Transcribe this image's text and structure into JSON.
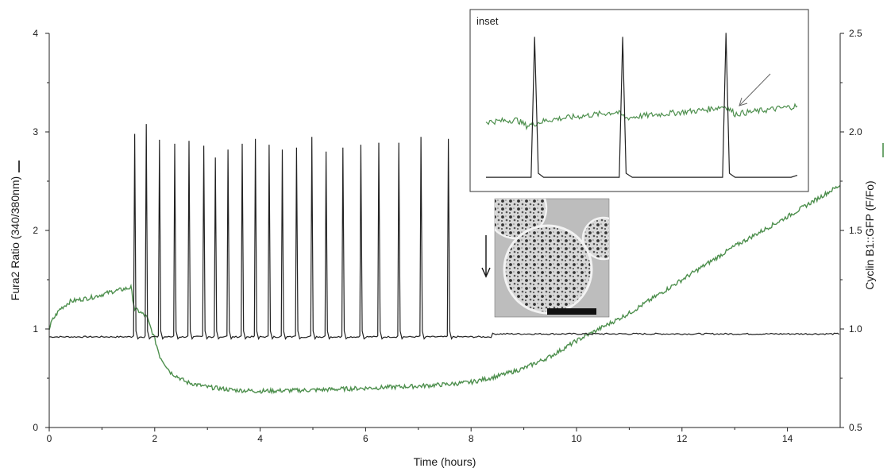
{
  "chart_data": [
    {
      "type": "line",
      "xlabel": "Time (hours)",
      "ylabel": "Fura2 Ratio (340/380nm)",
      "y2label": "Cyclin B1::GFP (F/Fo)",
      "xlim": [
        0,
        15
      ],
      "ylim": [
        0,
        4
      ],
      "y2lim": [
        0.5,
        2.5
      ],
      "x_ticks": [
        "0",
        "2",
        "4",
        "6",
        "8",
        "10",
        "12",
        "14"
      ],
      "y_ticks": [
        "0",
        "1",
        "2",
        "3",
        "4"
      ],
      "y2_ticks": [
        "0.5",
        "1.0",
        "1.5",
        "2.0",
        "2.5"
      ],
      "grid": false,
      "colors": {
        "fura2": "#222222",
        "gfp": "#4d8f4d"
      },
      "series": [
        {
          "axis": "left",
          "baseline": 0.92,
          "baseline_after_8_4h": 0.95,
          "spike_times": [
            1.62,
            1.84,
            2.09,
            2.38,
            2.65,
            2.93,
            3.15,
            3.39,
            3.66,
            3.91,
            4.17,
            4.42,
            4.69,
            4.98,
            5.25,
            5.57,
            5.91,
            6.25,
            6.63,
            7.05,
            7.57
          ],
          "spike_peaks": [
            2.98,
            3.08,
            2.92,
            2.88,
            2.91,
            2.86,
            2.74,
            2.82,
            2.88,
            2.93,
            2.87,
            2.82,
            2.84,
            2.95,
            2.8,
            2.84,
            2.87,
            2.89,
            2.89,
            2.95,
            2.93
          ]
        },
        {
          "axis": "right",
          "x": [
            0,
            0.05,
            0.2,
            0.4,
            0.8,
            1.2,
            1.55,
            1.62,
            1.7,
            1.85,
            2.0,
            2.1,
            2.3,
            2.6,
            3.0,
            3.5,
            4.0,
            5.0,
            6.0,
            7.0,
            7.6,
            8.0,
            8.5,
            9.0,
            9.5,
            10.0,
            10.5,
            11.0,
            12.0,
            13.0,
            14.0,
            14.5,
            15.0
          ],
          "y": [
            1.0,
            1.04,
            1.1,
            1.14,
            1.16,
            1.19,
            1.21,
            1.1,
            1.09,
            1.06,
            0.95,
            0.86,
            0.78,
            0.73,
            0.705,
            0.69,
            0.685,
            0.69,
            0.7,
            0.71,
            0.72,
            0.73,
            0.76,
            0.8,
            0.86,
            0.94,
            1.01,
            1.08,
            1.25,
            1.42,
            1.57,
            1.65,
            1.73
          ]
        }
      ]
    },
    {
      "type": "line",
      "label": "inset",
      "ylim": [
        1.7,
        2.6
      ],
      "colors": {
        "fura2": "#222222",
        "gfp": "#4d8f4d"
      },
      "series": [
        {
          "x": [
            0.0,
            0.1,
            0.145,
            0.156,
            0.168,
            0.185,
            0.4,
            0.428,
            0.439,
            0.45,
            0.47,
            0.7,
            0.76,
            0.771,
            0.782,
            0.8,
            0.98,
            1.0
          ],
          "y": [
            1.76,
            1.76,
            1.76,
            2.47,
            1.78,
            1.76,
            1.76,
            1.76,
            2.47,
            1.78,
            1.76,
            1.76,
            1.76,
            2.49,
            1.78,
            1.76,
            1.76,
            1.77
          ]
        },
        {
          "x": [
            0.0,
            0.1,
            0.13,
            0.2,
            0.42,
            0.45,
            0.5,
            0.7,
            0.77,
            0.8,
            0.9,
            0.95,
            1.0
          ],
          "y": [
            2.04,
            2.05,
            2.02,
            2.05,
            2.09,
            2.06,
            2.07,
            2.1,
            2.12,
            2.08,
            2.1,
            2.11,
            2.12
          ]
        }
      ]
    }
  ]
}
